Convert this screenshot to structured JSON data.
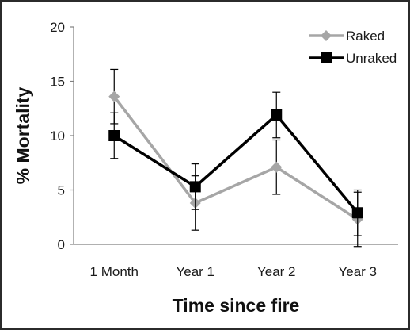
{
  "chart_data": {
    "type": "line",
    "categories": [
      "1 Month",
      "Year 1",
      "Year 2",
      "Year 3"
    ],
    "series": [
      {
        "name": "Raked",
        "values": [
          13.6,
          3.8,
          7.1,
          2.3
        ],
        "error": [
          2.5,
          2.5,
          2.5,
          2.5
        ],
        "color": "#a6a6a6",
        "marker": "diamond"
      },
      {
        "name": "Unraked",
        "values": [
          10.0,
          5.3,
          11.9,
          2.9
        ],
        "error": [
          2.1,
          2.1,
          2.1,
          2.1
        ],
        "color": "#000000",
        "marker": "square"
      }
    ],
    "xlabel": "Time since fire",
    "ylabel": "% Mortality",
    "ylim": [
      0,
      20
    ],
    "yticks": [
      0,
      5,
      10,
      15,
      20
    ],
    "grid": false,
    "legend": "top-right"
  }
}
